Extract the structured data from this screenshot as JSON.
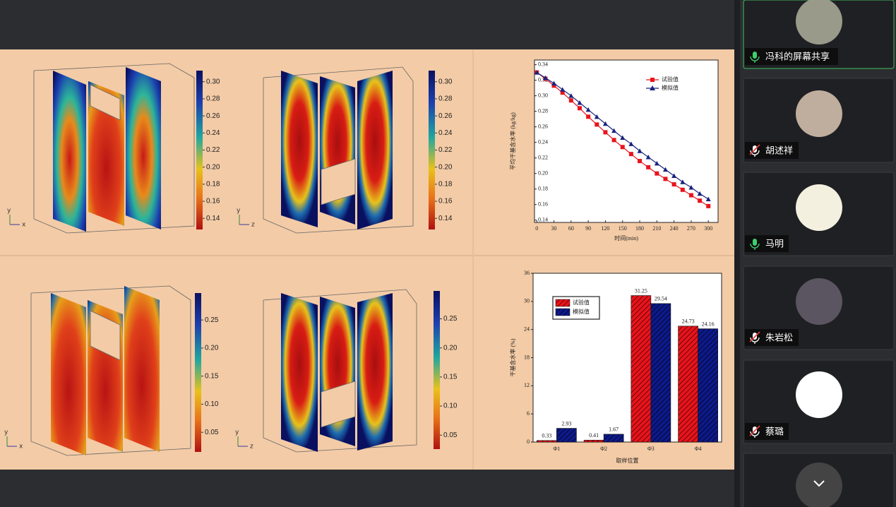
{
  "panels": [
    {
      "axis_labels": [
        "y",
        "x"
      ],
      "colorbar": {
        "clim": [
          0.127,
          0.313
        ],
        "ticks": [
          {
            "value": 0.3,
            "label": "0.30"
          },
          {
            "value": 0.28,
            "label": "0.28"
          },
          {
            "value": 0.26,
            "label": "0.26"
          },
          {
            "value": 0.24,
            "label": "0.24"
          },
          {
            "value": 0.22,
            "label": "0.22"
          },
          {
            "value": 0.2,
            "label": "0.20"
          },
          {
            "value": 0.18,
            "label": "0.18"
          },
          {
            "value": 0.16,
            "label": "0.16"
          },
          {
            "value": 0.14,
            "label": "0.14"
          }
        ]
      }
    },
    {
      "axis_labels": [
        "y",
        "z"
      ],
      "colorbar": {
        "clim": [
          0.127,
          0.313
        ],
        "ticks": [
          {
            "value": 0.3,
            "label": "0.30"
          },
          {
            "value": 0.28,
            "label": "0.28"
          },
          {
            "value": 0.26,
            "label": "0.26"
          },
          {
            "value": 0.24,
            "label": "0.24"
          },
          {
            "value": 0.22,
            "label": "0.22"
          },
          {
            "value": 0.2,
            "label": "0.20"
          },
          {
            "value": 0.18,
            "label": "0.18"
          },
          {
            "value": 0.16,
            "label": "0.16"
          },
          {
            "value": 0.14,
            "label": "0.14"
          }
        ]
      }
    },
    {
      "axis_labels": [
        "y",
        "x"
      ],
      "colorbar": {
        "clim": [
          0.015,
          0.298
        ],
        "ticks": [
          0.25,
          {
            "value": 0.2,
            "label": "0.20"
          },
          0.15,
          {
            "value": 0.1,
            "label": "0.10"
          },
          0.05
        ]
      }
    },
    {
      "axis_labels": [
        "y",
        "z"
      ],
      "colorbar": {
        "clim": [
          0.026,
          0.298
        ],
        "ticks": [
          0.25,
          {
            "value": 0.2,
            "label": "0.20"
          },
          0.15,
          {
            "value": 0.1,
            "label": "0.10"
          },
          0.05
        ]
      }
    }
  ],
  "chart_data": [
    {
      "type": "line",
      "x_label": "时间(min)",
      "y_label": "平均干基含水率 (kg/kg)",
      "x": [
        0,
        15,
        30,
        45,
        60,
        75,
        90,
        105,
        120,
        135,
        150,
        165,
        180,
        195,
        210,
        225,
        240,
        255,
        270,
        285,
        300
      ],
      "series": [
        {
          "name": "试验值",
          "color": "#e8141c",
          "marker": "square",
          "values": [
            0.33,
            0.322,
            0.313,
            0.304,
            0.294,
            0.284,
            0.273,
            0.263,
            0.253,
            0.243,
            0.234,
            0.225,
            0.216,
            0.208,
            0.2,
            0.193,
            0.186,
            0.179,
            0.172,
            0.165,
            0.158
          ]
        },
        {
          "name": "模拟值",
          "color": "#1a237e",
          "marker": "triangle",
          "values": [
            0.33,
            0.323,
            0.316,
            0.308,
            0.3,
            0.291,
            0.282,
            0.273,
            0.264,
            0.255,
            0.246,
            0.238,
            0.229,
            0.221,
            0.213,
            0.205,
            0.197,
            0.189,
            0.182,
            0.174,
            0.167
          ]
        }
      ],
      "xlim": [
        -4,
        317
      ],
      "ylim": [
        0.137,
        0.346
      ],
      "xticks": [
        0,
        30,
        60,
        90,
        120,
        150,
        180,
        210,
        240,
        270,
        300
      ],
      "yticks": [
        0.14,
        0.16,
        0.18,
        {
          "value": 0.2,
          "label": "0.20"
        },
        0.22,
        0.24,
        0.26,
        0.28,
        {
          "value": 0.3,
          "label": "0.30"
        },
        0.32,
        0.34
      ]
    },
    {
      "type": "bar",
      "x_label": "取样位置",
      "y_label": "干基含水率 (%)",
      "categories": [
        "Φ1",
        "Φ2",
        "Φ3",
        "Φ4"
      ],
      "series": [
        {
          "name": "试验值",
          "color": "#e8141c",
          "values": [
            0.33,
            0.41,
            31.25,
            24.73
          ]
        },
        {
          "name": "模拟值",
          "color": "#0d1a8c",
          "values": [
            2.93,
            1.67,
            29.54,
            24.16
          ]
        }
      ],
      "ylim": [
        0,
        36
      ],
      "yticks": [
        0,
        6,
        12,
        18,
        24,
        30,
        36
      ]
    }
  ],
  "participants": [
    {
      "name": "冯科的屏幕共享"
    },
    {
      "name": "胡述祥"
    },
    {
      "name": "马明"
    },
    {
      "name": "朱岩松"
    },
    {
      "name": "蔡璐"
    }
  ]
}
